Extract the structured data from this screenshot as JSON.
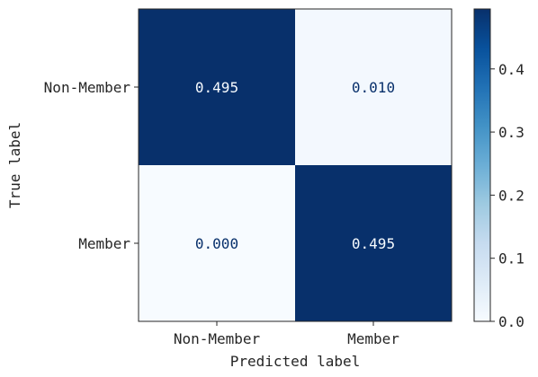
{
  "chart_data": {
    "type": "heatmap",
    "title": "",
    "xlabel": "Predicted label",
    "ylabel": "True label",
    "x_categories": [
      "Non-Member",
      "Member"
    ],
    "y_categories": [
      "Non-Member",
      "Member"
    ],
    "values": [
      [
        0.495,
        0.01
      ],
      [
        0.0,
        0.495
      ]
    ],
    "cell_labels": [
      [
        "0.495",
        "0.010"
      ],
      [
        "0.000",
        "0.495"
      ]
    ],
    "colorbar": {
      "range": [
        0,
        0.495
      ],
      "ticks": [
        0.0,
        0.1,
        0.2,
        0.3,
        0.4
      ],
      "tick_labels": [
        "0.0",
        "0.1",
        "0.2",
        "0.3",
        "0.4"
      ],
      "colormap": "Blues",
      "color_low": "#f7fbff",
      "color_high": "#08306b"
    }
  }
}
